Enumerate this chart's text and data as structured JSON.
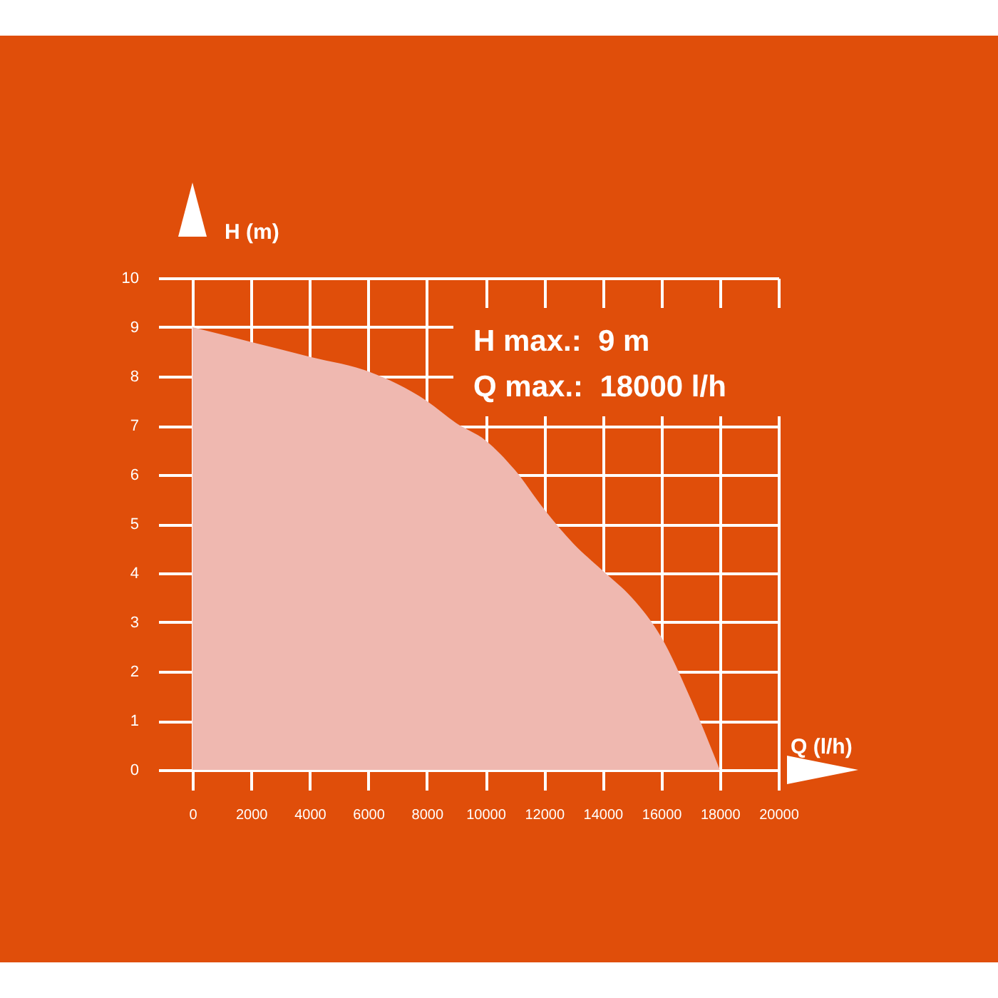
{
  "chart_data": {
    "type": "area",
    "xlabel": "Q (l/h)",
    "ylabel": "H (m)",
    "annotations": [
      "H max.:  9 m",
      "Q max.:  18000 l/h"
    ],
    "x": [
      0,
      2000,
      4000,
      6000,
      8000,
      9000,
      10000,
      11000,
      12000,
      13000,
      14000,
      15000,
      16000,
      17000,
      18000
    ],
    "series": [
      {
        "color": "#efb8b0",
        "values": [
          9,
          8.7,
          8.4,
          8.1,
          7.5,
          7.05,
          6.7,
          6.1,
          5.3,
          4.6,
          4.05,
          3.5,
          2.7,
          1.45,
          0
        ]
      }
    ],
    "xlim": [
      0,
      20000
    ],
    "xticks": [
      0,
      2000,
      4000,
      6000,
      8000,
      10000,
      12000,
      14000,
      16000,
      18000,
      20000
    ],
    "ylim": [
      0,
      10
    ],
    "yticks": [
      0,
      1,
      2,
      3,
      4,
      5,
      6,
      7,
      8,
      9,
      10
    ],
    "grid": true
  }
}
